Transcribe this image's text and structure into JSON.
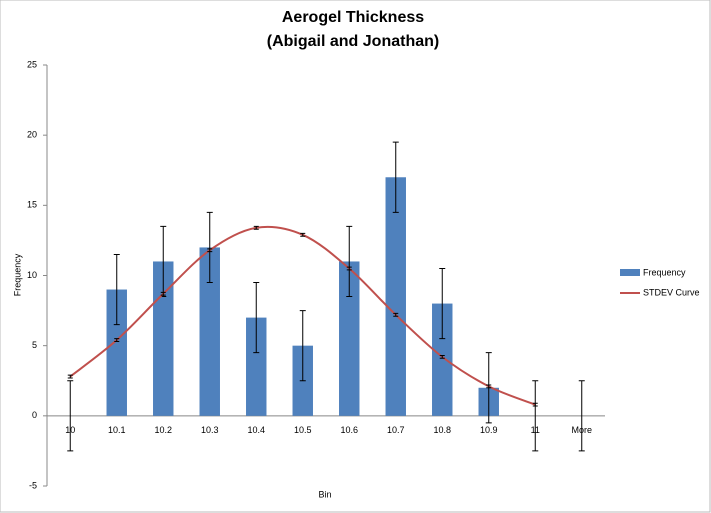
{
  "chart_data": {
    "type": "bar",
    "title": [
      "Aerogel Thickness",
      "(Abigail and Jonathan)"
    ],
    "x_label": "Bin",
    "y_label": "Frequency",
    "categories": [
      "10",
      "10.1",
      "10.2",
      "10.3",
      "10.4",
      "10.5",
      "10.6",
      "10.7",
      "10.8",
      "10.9",
      "11",
      "More"
    ],
    "series": [
      {
        "name": "Frequency",
        "type": "bar",
        "color": "#4f81bd",
        "error": 2.5,
        "values": [
          0,
          9,
          11,
          12,
          7,
          5,
          11,
          17,
          8,
          2,
          0,
          0
        ]
      },
      {
        "name": "STDEV Curve",
        "type": "line",
        "color": "#c0504d",
        "error": 0.1,
        "values": [
          2.8,
          5.4,
          8.7,
          11.8,
          13.4,
          12.9,
          10.5,
          7.2,
          4.2,
          2.1,
          0.8,
          null
        ]
      }
    ],
    "ylim": [
      -5,
      25
    ],
    "yticks": [
      -5,
      0,
      5,
      10,
      15,
      20,
      25
    ],
    "grid": false,
    "legend": "right"
  }
}
